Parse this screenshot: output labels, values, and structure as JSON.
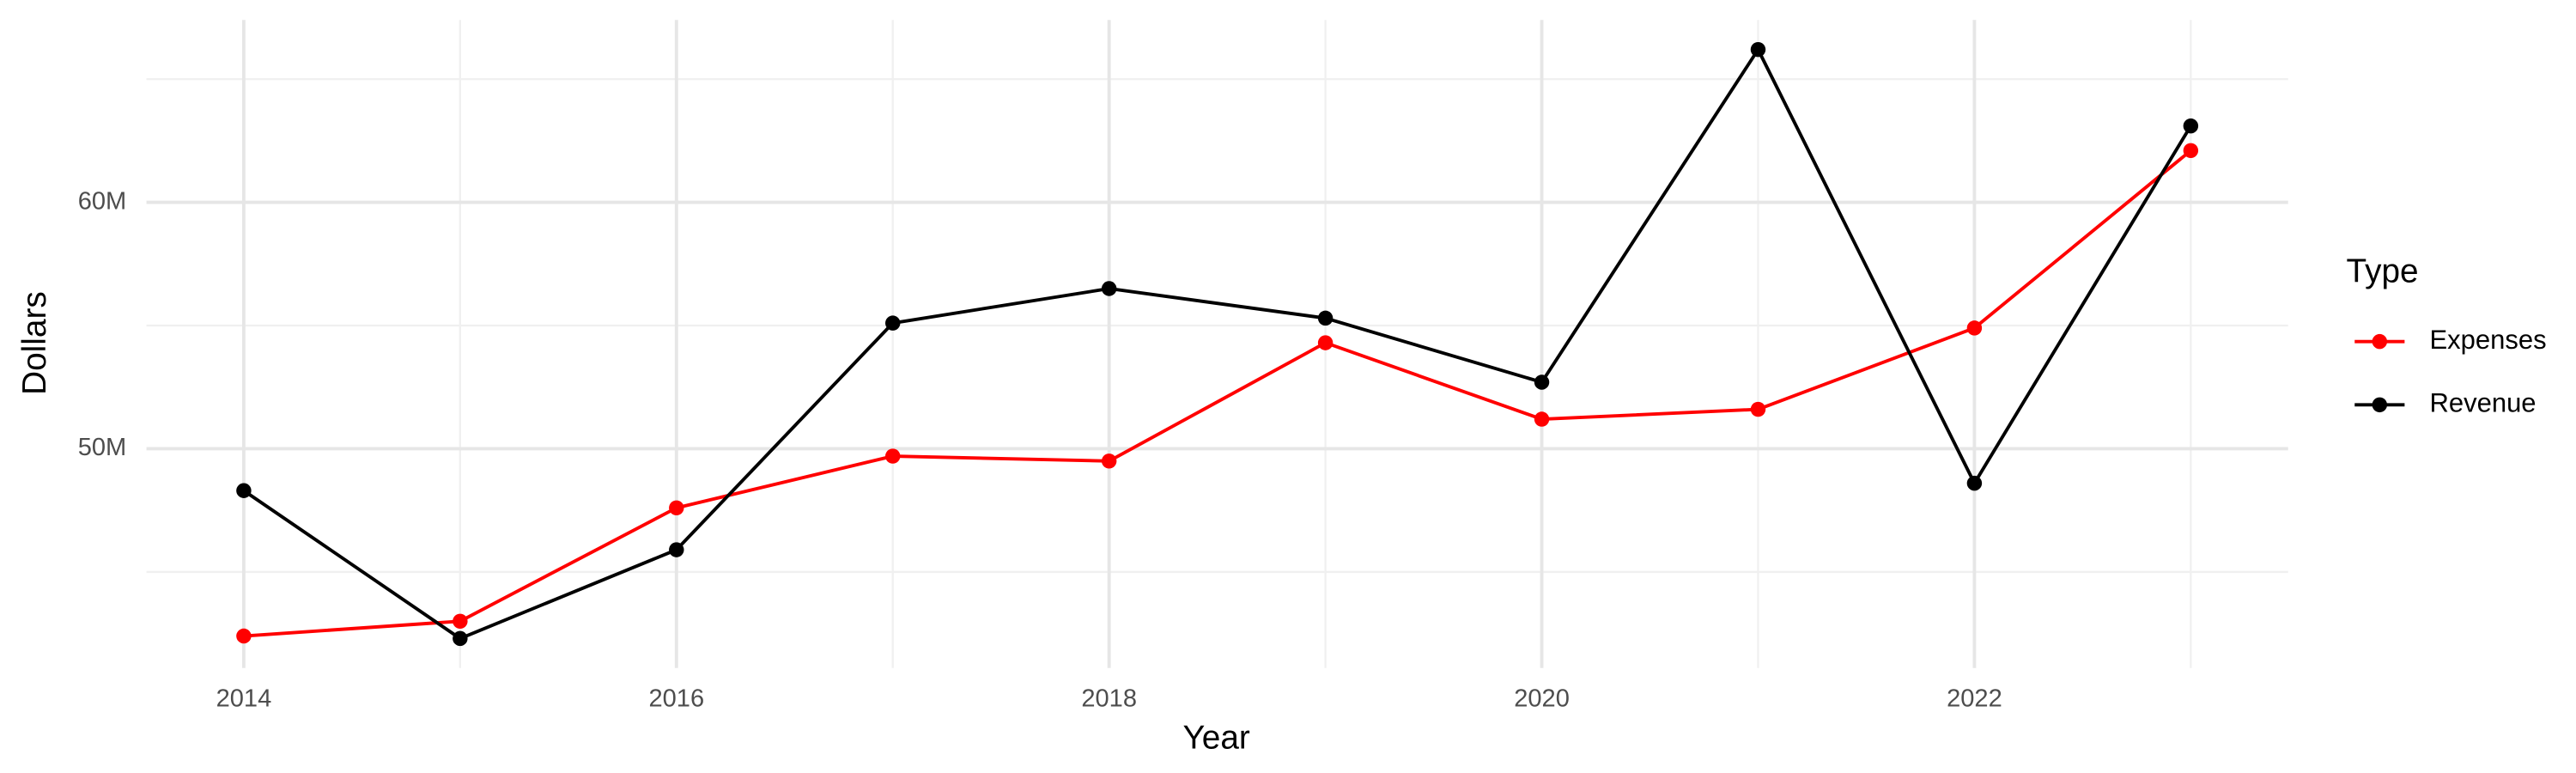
{
  "chart_data": {
    "type": "line",
    "x_label": "Year",
    "y_label": "Dollars",
    "legend_title": "Type",
    "x": [
      2014,
      2015,
      2016,
      2017,
      2018,
      2019,
      2020,
      2021,
      2022,
      2023
    ],
    "series": [
      {
        "name": "Expenses",
        "color": "#ff0000",
        "values": [
          42400000,
          43000000,
          47600000,
          49700000,
          49500000,
          54300000,
          51200000,
          51600000,
          54900000,
          62100000
        ]
      },
      {
        "name": "Revenue",
        "color": "#000000",
        "values": [
          48300000,
          42300000,
          45900000,
          55100000,
          56500000,
          55300000,
          52700000,
          66200000,
          48600000,
          63100000
        ]
      }
    ],
    "xlim": [
      2013.55,
      2023.45
    ],
    "xticks": [
      2014,
      2016,
      2018,
      2020,
      2022
    ],
    "minor_xticks": [
      2015,
      2017,
      2019,
      2021,
      2023
    ],
    "ylim": [
      41100000,
      67400000
    ],
    "yticks": [
      {
        "value": 50000000,
        "label": "50M"
      },
      {
        "value": 60000000,
        "label": "60M"
      }
    ],
    "minor_yticks": [
      45000000,
      55000000,
      65000000
    ],
    "grid": true,
    "legend": "right"
  }
}
